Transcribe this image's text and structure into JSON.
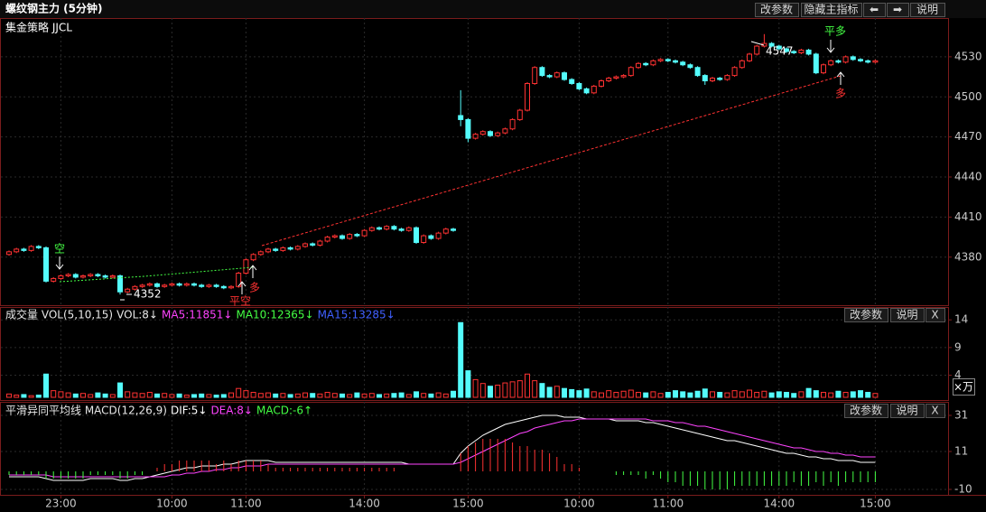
{
  "toolbar": [
    "改参数",
    "隐藏主指标",
    "⬅",
    "➡",
    "说明"
  ],
  "chart_data": [
    {
      "type": "candlestick",
      "title": "螺纹钢主力 (5分钟)",
      "subtitle": "集金策略 JJCL",
      "categories": [
        null,
        null,
        null,
        null,
        null,
        null,
        null,
        "23:00",
        null,
        null,
        null,
        null,
        null,
        null,
        null,
        null,
        null,
        null,
        null,
        null,
        null,
        null,
        "10:00",
        null,
        null,
        null,
        null,
        null,
        null,
        null,
        null,
        null,
        "11:00",
        null,
        null,
        null,
        null,
        null,
        null,
        null,
        null,
        null,
        null,
        null,
        null,
        null,
        null,
        null,
        "14:00",
        null,
        null,
        null,
        null,
        null,
        null,
        null,
        null,
        null,
        null,
        null,
        null,
        null,
        "15:00",
        null,
        null,
        null,
        null,
        null,
        null,
        null,
        null,
        null,
        null,
        null,
        null,
        null,
        null,
        "10:00",
        null,
        null,
        null,
        null,
        null,
        null,
        null,
        null,
        null,
        null,
        null,
        "11:00",
        null,
        null,
        null,
        null,
        null,
        null,
        null,
        null,
        null,
        null,
        null,
        null,
        null,
        null,
        "14:00",
        null,
        null,
        null,
        null,
        null,
        null,
        null,
        null,
        null,
        null,
        null,
        null,
        "15:00"
      ],
      "open": [
        4382,
        4384,
        4386,
        4385,
        4388,
        4387,
        4362,
        4364,
        4366,
        4367,
        4365,
        4366,
        4367,
        4366,
        4365,
        4366,
        4354,
        4356,
        4358,
        4359,
        4360,
        4358,
        4359,
        4360,
        4359,
        4360,
        4359,
        4358,
        4359,
        4358,
        4357,
        4358,
        4368,
        4378,
        4382,
        4384,
        4386,
        4385,
        4387,
        4386,
        4388,
        4390,
        4389,
        4392,
        4395,
        4396,
        4394,
        4397,
        4396,
        4400,
        4402,
        4401,
        4403,
        4401,
        4400,
        4402,
        4391,
        4396,
        4394,
        4398,
        4401,
        4486,
        4483,
        4469,
        4472,
        4474,
        4471,
        4473,
        4476,
        4483,
        4490,
        4510,
        4522,
        4516,
        4515,
        4518,
        4513,
        4510,
        4506,
        4503,
        4508,
        4512,
        4514,
        4515,
        4516,
        4522,
        4525,
        4524,
        4527,
        4528,
        4527,
        4526,
        4524,
        4522,
        4516,
        4512,
        4514,
        4513,
        4516,
        4522,
        4527,
        4532,
        4538,
        4540,
        4538,
        4536,
        4534,
        4533,
        4535,
        4532,
        4518,
        4524,
        4527,
        4526,
        4530,
        4528,
        4527,
        4526
      ],
      "high": [
        4385,
        4387,
        4387,
        4389,
        4389,
        4388,
        4365,
        4367,
        4368,
        4368,
        4367,
        4368,
        4368,
        4367,
        4367,
        4367,
        4357,
        4359,
        4360,
        4361,
        4361,
        4360,
        4361,
        4361,
        4361,
        4361,
        4360,
        4360,
        4360,
        4359,
        4359,
        4369,
        4379,
        4383,
        4385,
        4387,
        4387,
        4388,
        4388,
        4389,
        4391,
        4391,
        4393,
        4396,
        4397,
        4397,
        4398,
        4398,
        4401,
        4403,
        4403,
        4404,
        4404,
        4402,
        4403,
        4403,
        4397,
        4397,
        4399,
        4402,
        4402,
        4505,
        4484,
        4473,
        4475,
        4475,
        4474,
        4477,
        4484,
        4491,
        4511,
        4523,
        4523,
        4517,
        4519,
        4519,
        4514,
        4511,
        4507,
        4509,
        4513,
        4515,
        4516,
        4517,
        4523,
        4526,
        4526,
        4528,
        4529,
        4529,
        4528,
        4527,
        4525,
        4523,
        4517,
        4515,
        4515,
        4517,
        4523,
        4528,
        4533,
        4539,
        4547,
        4541,
        4539,
        4537,
        4535,
        4536,
        4536,
        4533,
        4525,
        4528,
        4528,
        4531,
        4531,
        4529,
        4528,
        4528
      ],
      "low": [
        4381,
        4383,
        4384,
        4384,
        4386,
        4361,
        4361,
        4363,
        4365,
        4364,
        4364,
        4365,
        4365,
        4364,
        4364,
        4352,
        4353,
        4355,
        4357,
        4358,
        4357,
        4357,
        4358,
        4358,
        4358,
        4358,
        4357,
        4357,
        4357,
        4356,
        4356,
        4357,
        4367,
        4377,
        4381,
        4383,
        4384,
        4384,
        4385,
        4385,
        4387,
        4388,
        4388,
        4391,
        4394,
        4393,
        4393,
        4395,
        4395,
        4399,
        4400,
        4400,
        4400,
        4399,
        4399,
        4390,
        4390,
        4393,
        4393,
        4397,
        4399,
        4478,
        4466,
        4468,
        4471,
        4470,
        4470,
        4472,
        4475,
        4482,
        4489,
        4509,
        4515,
        4514,
        4514,
        4512,
        4509,
        4505,
        4502,
        4502,
        4507,
        4511,
        4513,
        4514,
        4515,
        4521,
        4523,
        4523,
        4526,
        4526,
        4525,
        4523,
        4521,
        4515,
        4509,
        4511,
        4512,
        4512,
        4515,
        4521,
        4526,
        4531,
        4537,
        4537,
        4535,
        4533,
        4532,
        4532,
        4531,
        4517,
        4517,
        4523,
        4525,
        4525,
        4527,
        4526,
        4525,
        4525
      ],
      "close": [
        4384,
        4386,
        4385,
        4388,
        4387,
        4362,
        4364,
        4366,
        4367,
        4365,
        4366,
        4367,
        4366,
        4365,
        4366,
        4354,
        4356,
        4358,
        4359,
        4360,
        4358,
        4359,
        4360,
        4359,
        4360,
        4359,
        4358,
        4359,
        4358,
        4357,
        4358,
        4368,
        4378,
        4382,
        4384,
        4386,
        4385,
        4387,
        4386,
        4388,
        4390,
        4389,
        4392,
        4395,
        4396,
        4394,
        4397,
        4396,
        4400,
        4402,
        4401,
        4403,
        4401,
        4400,
        4402,
        4391,
        4396,
        4394,
        4398,
        4401,
        4400,
        4483,
        4469,
        4472,
        4474,
        4471,
        4473,
        4476,
        4483,
        4490,
        4510,
        4522,
        4516,
        4515,
        4518,
        4513,
        4510,
        4506,
        4503,
        4508,
        4512,
        4514,
        4515,
        4516,
        4522,
        4525,
        4524,
        4527,
        4528,
        4527,
        4526,
        4524,
        4522,
        4516,
        4512,
        4514,
        4513,
        4516,
        4522,
        4527,
        4532,
        4538,
        4540,
        4538,
        4536,
        4534,
        4533,
        4535,
        4532,
        4518,
        4524,
        4527,
        4526,
        4530,
        4528,
        4527,
        4526,
        4527
      ],
      "ylim": [
        4344,
        4559
      ],
      "yticks": [
        4380,
        4410,
        4440,
        4470,
        4500,
        4530
      ],
      "up_color": "#ff3232",
      "down_color": "#54fcfc",
      "flat_color": "#ffffff",
      "annotations": [
        "空",
        "平空",
        "多",
        "平多",
        "多"
      ]
    },
    {
      "type": "bar",
      "title": "成交量 VOL(5,10,15)",
      "buttons": [
        "改参数",
        "说明",
        "X"
      ],
      "legend": [
        {
          "text": "VOL:8↓",
          "color": "#e8e8e8"
        },
        {
          "text": "MA5:11851↓",
          "color": "#ff44ff"
        },
        {
          "text": "MA10:12365↓",
          "color": "#44ff44"
        },
        {
          "text": "MA15:13285↓",
          "color": "#4060ff"
        }
      ],
      "values": [
        0.6,
        0.4,
        0.5,
        0.3,
        0.4,
        4.2,
        1.2,
        1.0,
        0.8,
        0.6,
        0.7,
        0.5,
        0.8,
        0.6,
        0.5,
        2.6,
        1.0,
        0.8,
        0.7,
        0.9,
        0.6,
        0.7,
        0.5,
        0.6,
        0.4,
        0.5,
        0.6,
        0.5,
        0.4,
        0.5,
        0.8,
        1.6,
        1.2,
        0.9,
        0.7,
        0.8,
        0.6,
        0.7,
        0.5,
        0.6,
        0.8,
        0.7,
        0.6,
        0.9,
        0.7,
        0.6,
        0.5,
        0.8,
        0.6,
        0.7,
        0.5,
        0.6,
        0.7,
        0.8,
        0.5,
        1.0,
        0.7,
        0.6,
        0.8,
        0.6,
        1.1,
        13.5,
        4.8,
        3.2,
        2.5,
        2.0,
        2.2,
        2.6,
        2.8,
        3.0,
        4.2,
        3.0,
        2.5,
        1.8,
        2.0,
        1.6,
        1.4,
        1.2,
        1.5,
        1.0,
        0.8,
        1.2,
        0.9,
        1.1,
        1.3,
        0.9,
        0.8,
        1.0,
        0.7,
        0.9,
        1.2,
        1.0,
        0.8,
        1.1,
        1.5,
        1.0,
        0.9,
        0.8,
        1.2,
        1.0,
        1.3,
        0.9,
        1.1,
        0.8,
        1.0,
        0.9,
        0.7,
        1.0,
        1.6,
        1.2,
        0.9,
        0.8,
        1.1,
        0.9,
        1.0,
        1.2,
        0.9,
        0.7
      ],
      "ylim": [
        0,
        15.5
      ],
      "yticks": [
        4,
        9,
        14
      ],
      "unit": "×万"
    },
    {
      "type": "macd",
      "title": "平滑异同平均线 MACD(12,26,9)",
      "buttons": [
        "改参数",
        "说明",
        "X"
      ],
      "series": [
        {
          "name": "DIF:5↓",
          "color": "#ffffff",
          "values": [
            -3,
            -3,
            -3,
            -3,
            -3,
            -4,
            -5,
            -5,
            -5,
            -5,
            -5,
            -4,
            -4,
            -4,
            -4,
            -5,
            -5,
            -4,
            -4,
            -3,
            -2,
            -1,
            0,
            1,
            2,
            2,
            3,
            3,
            3,
            4,
            4,
            5,
            6,
            6,
            6,
            6,
            5,
            5,
            5,
            5,
            5,
            5,
            5,
            5,
            5,
            5,
            5,
            5,
            5,
            5,
            5,
            5,
            5,
            5,
            4,
            4,
            4,
            4,
            4,
            4,
            4,
            10,
            14,
            17,
            20,
            22,
            24,
            26,
            27,
            28,
            29,
            30,
            31,
            31,
            31,
            30,
            30,
            30,
            29,
            29,
            29,
            29,
            28,
            28,
            28,
            28,
            27,
            27,
            26,
            25,
            24,
            23,
            22,
            21,
            20,
            19,
            18,
            17,
            17,
            16,
            15,
            14,
            13,
            12,
            11,
            10,
            10,
            9,
            8,
            8,
            7,
            7,
            6,
            6,
            6,
            5,
            5,
            5
          ]
        },
        {
          "name": "DEA:8↓",
          "color": "#ff44ff",
          "values": [
            -2,
            -2,
            -2,
            -2,
            -2,
            -2,
            -3,
            -3,
            -3,
            -3,
            -3,
            -3,
            -3,
            -3,
            -3,
            -3,
            -3,
            -3,
            -3,
            -3,
            -3,
            -3,
            -2,
            -2,
            -1,
            -1,
            0,
            0,
            1,
            1,
            2,
            2,
            3,
            3,
            3,
            4,
            4,
            4,
            4,
            4,
            4,
            4,
            4,
            4,
            4,
            4,
            4,
            4,
            4,
            4,
            4,
            4,
            4,
            4,
            4,
            4,
            4,
            4,
            4,
            4,
            4,
            5,
            7,
            9,
            11,
            13,
            15,
            17,
            19,
            21,
            22,
            24,
            25,
            26,
            27,
            28,
            28,
            29,
            29,
            29,
            29,
            29,
            29,
            29,
            29,
            29,
            29,
            28,
            28,
            28,
            27,
            27,
            26,
            25,
            25,
            24,
            23,
            22,
            21,
            20,
            19,
            18,
            17,
            16,
            15,
            14,
            13,
            13,
            12,
            11,
            11,
            10,
            10,
            9,
            9,
            8,
            8,
            8
          ]
        },
        {
          "name": "MACD:-6↑",
          "color": "#44ff44",
          "kind": "bar",
          "up_color": "#ff3232",
          "down_color": "#44ff44",
          "values": [
            -2,
            -2,
            -2,
            -2,
            -2,
            -4,
            -4,
            -4,
            -4,
            -4,
            -4,
            -2,
            -2,
            -2,
            -2,
            -4,
            -4,
            -2,
            -2,
            0,
            2,
            4,
            4,
            6,
            6,
            6,
            6,
            6,
            4,
            6,
            4,
            6,
            6,
            6,
            6,
            4,
            2,
            2,
            2,
            2,
            2,
            2,
            2,
            2,
            2,
            2,
            2,
            2,
            2,
            2,
            2,
            2,
            2,
            0,
            0,
            0,
            0,
            0,
            0,
            0,
            0,
            10,
            14,
            16,
            18,
            18,
            18,
            18,
            16,
            14,
            14,
            12,
            12,
            10,
            8,
            4,
            4,
            2,
            0,
            0,
            0,
            0,
            -2,
            -2,
            -2,
            -2,
            -4,
            -2,
            -4,
            -6,
            -6,
            -8,
            -8,
            -8,
            -10,
            -10,
            -10,
            -10,
            -8,
            -8,
            -8,
            -8,
            -8,
            -8,
            -8,
            -8,
            -6,
            -8,
            -8,
            -6,
            -8,
            -6,
            -8,
            -6,
            -6,
            -6,
            -6,
            -6
          ]
        }
      ],
      "ylim": [
        -13,
        37
      ],
      "yticks": [
        -10,
        11,
        31
      ]
    }
  ]
}
